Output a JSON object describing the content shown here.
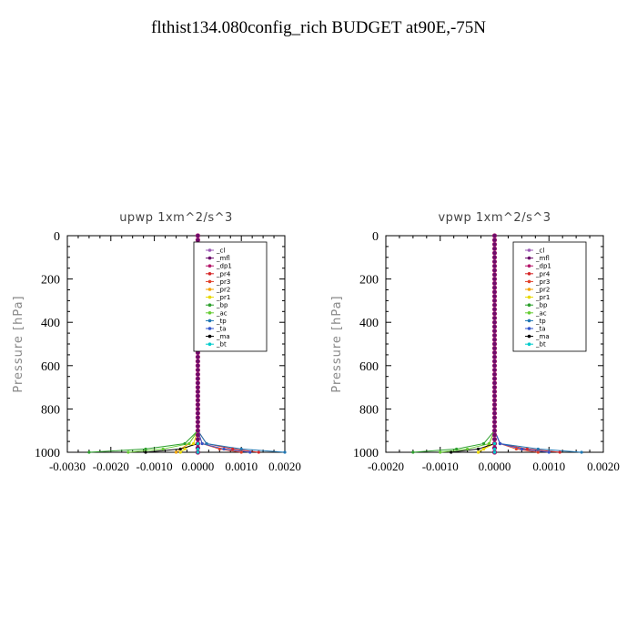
{
  "title": "flthist134.080config_rich  BUDGET at90E,-75N",
  "colors": {
    "_cl": "#9b59b6",
    "_mfl": "#6a0d6a",
    "_dp1": "#b5176a",
    "_pr4": "#d62728",
    "_pr3": "#e0402a",
    "_pr2": "#f4a300",
    "_pr1": "#e8d800",
    "_bp": "#2ca02c",
    "_ac": "#66cc33",
    "_tp": "#1f77b4",
    "_ta": "#3355cc",
    "_ma": "#000000",
    "_bt": "#00cccc"
  },
  "chart_data": [
    {
      "type": "line",
      "title": "upwp   1xm^2/s^3",
      "ylabel": "Pressure  [hPa]",
      "xlabel": "",
      "xlim": [
        -0.003,
        0.002
      ],
      "ylim": [
        1000,
        0
      ],
      "xticks": [
        "-0.0030",
        "-0.0020",
        "-0.0010",
        "0.0000",
        "0.0010",
        "0.0020"
      ],
      "yticks": [
        "0",
        "200",
        "400",
        "600",
        "800",
        "1000"
      ],
      "legend_position": "top-right",
      "grid": false,
      "series": [
        {
          "name": "_cl",
          "x": [
            0,
            0,
            0,
            0,
            0,
            0,
            0,
            0,
            0,
            0,
            0,
            0,
            0
          ],
          "y": [
            0,
            100,
            200,
            300,
            400,
            500,
            600,
            700,
            800,
            900,
            960,
            985,
            1000
          ]
        },
        {
          "name": "_mfl",
          "x": [
            0,
            0,
            0,
            0,
            0,
            0,
            0,
            0,
            0,
            0,
            0,
            0,
            0
          ],
          "y": [
            0,
            100,
            200,
            300,
            400,
            500,
            600,
            700,
            800,
            900,
            960,
            985,
            1000
          ]
        },
        {
          "name": "_dp1",
          "x": [
            0,
            0,
            0,
            0,
            0,
            0,
            0,
            0,
            0,
            0,
            0,
            0,
            0
          ],
          "y": [
            0,
            100,
            200,
            300,
            400,
            500,
            600,
            700,
            800,
            900,
            960,
            985,
            1000
          ]
        },
        {
          "name": "_pr4",
          "x": [
            0,
            0,
            0,
            0,
            0,
            0,
            0,
            0,
            0,
            0,
            0.0002,
            0.0008,
            0.0014
          ],
          "y": [
            0,
            100,
            200,
            300,
            400,
            500,
            600,
            700,
            800,
            900,
            960,
            985,
            1000
          ]
        },
        {
          "name": "_pr3",
          "x": [
            0,
            0,
            0,
            0,
            0,
            0,
            0,
            0,
            0,
            0,
            0.0001,
            0.0005,
            0.001
          ],
          "y": [
            0,
            100,
            200,
            300,
            400,
            500,
            600,
            700,
            800,
            900,
            960,
            985,
            1000
          ]
        },
        {
          "name": "_pr2",
          "x": [
            0,
            0,
            0,
            0,
            0,
            0,
            0,
            0,
            0,
            0,
            -0.0002,
            -0.0004,
            -0.0005
          ],
          "y": [
            0,
            100,
            200,
            300,
            400,
            500,
            600,
            700,
            800,
            900,
            960,
            985,
            1000
          ]
        },
        {
          "name": "_pr1",
          "x": [
            0,
            0,
            0,
            0,
            0,
            0,
            0,
            0,
            0,
            0,
            -0.0001,
            -0.0003,
            -0.0004
          ],
          "y": [
            0,
            100,
            200,
            300,
            400,
            500,
            600,
            700,
            800,
            900,
            960,
            985,
            1000
          ]
        },
        {
          "name": "_bp",
          "x": [
            0,
            0,
            0,
            0,
            0,
            0,
            0,
            0,
            0,
            0,
            -0.0003,
            -0.0012,
            -0.0025
          ],
          "y": [
            0,
            100,
            200,
            300,
            400,
            500,
            600,
            700,
            800,
            900,
            960,
            985,
            1000
          ]
        },
        {
          "name": "_ac",
          "x": [
            0,
            0,
            0,
            0,
            0,
            0,
            0,
            0,
            0,
            0,
            -0.0002,
            -0.0008,
            -0.0016
          ],
          "y": [
            0,
            100,
            200,
            300,
            400,
            500,
            600,
            700,
            800,
            900,
            960,
            985,
            1000
          ]
        },
        {
          "name": "_tp",
          "x": [
            0,
            0,
            0,
            0,
            0,
            0,
            0,
            0,
            0,
            0,
            0.0002,
            0.001,
            0.002
          ],
          "y": [
            0,
            100,
            200,
            300,
            400,
            500,
            600,
            700,
            800,
            900,
            960,
            985,
            1000
          ]
        },
        {
          "name": "_ta",
          "x": [
            0,
            0,
            0,
            0,
            0,
            0,
            0,
            0,
            0,
            0,
            0.0001,
            0.0006,
            0.0012
          ],
          "y": [
            0,
            100,
            200,
            300,
            400,
            500,
            600,
            700,
            800,
            900,
            960,
            985,
            1000
          ]
        },
        {
          "name": "_ma",
          "x": [
            0,
            0,
            0,
            0,
            0,
            0,
            0,
            0,
            0,
            0,
            0,
            -0.0004,
            -0.0012
          ],
          "y": [
            0,
            100,
            200,
            300,
            400,
            500,
            600,
            700,
            800,
            900,
            960,
            985,
            1000
          ]
        },
        {
          "name": "_bt",
          "x": [
            0,
            0,
            0,
            0,
            0,
            0,
            0,
            0,
            0,
            0,
            0,
            0,
            0
          ],
          "y": [
            0,
            100,
            200,
            300,
            400,
            500,
            600,
            700,
            800,
            900,
            960,
            985,
            1000
          ]
        }
      ]
    },
    {
      "type": "line",
      "title": "vpwp   1xm^2/s^3",
      "ylabel": "Pressure  [hPa]",
      "xlabel": "",
      "xlim": [
        -0.002,
        0.002
      ],
      "ylim": [
        1000,
        0
      ],
      "xticks": [
        "-0.0020",
        "-0.0010",
        "0.0000",
        "0.0010",
        "0.0020"
      ],
      "yticks": [
        "0",
        "200",
        "400",
        "600",
        "800",
        "1000"
      ],
      "legend_position": "top-right",
      "grid": false,
      "series": [
        {
          "name": "_cl",
          "x": [
            0,
            0,
            0,
            0,
            0,
            0,
            0,
            0,
            0,
            0,
            0,
            0,
            0
          ],
          "y": [
            0,
            100,
            200,
            300,
            400,
            500,
            600,
            700,
            800,
            900,
            960,
            985,
            1000
          ]
        },
        {
          "name": "_mfl",
          "x": [
            0,
            0,
            0,
            0,
            0,
            0,
            0,
            0,
            0,
            0,
            0,
            0,
            0
          ],
          "y": [
            0,
            100,
            200,
            300,
            400,
            500,
            600,
            700,
            800,
            900,
            960,
            985,
            1000
          ]
        },
        {
          "name": "_dp1",
          "x": [
            0,
            0,
            0,
            0,
            0,
            0,
            0,
            0,
            0,
            0,
            0,
            0,
            0
          ],
          "y": [
            0,
            100,
            200,
            300,
            400,
            500,
            600,
            700,
            800,
            900,
            960,
            985,
            1000
          ]
        },
        {
          "name": "_pr4",
          "x": [
            0,
            0,
            0,
            0,
            0,
            0,
            0,
            0,
            0,
            0,
            0.0001,
            0.0006,
            0.0012
          ],
          "y": [
            0,
            100,
            200,
            300,
            400,
            500,
            600,
            700,
            800,
            900,
            960,
            985,
            1000
          ]
        },
        {
          "name": "_pr3",
          "x": [
            0,
            0,
            0,
            0,
            0,
            0,
            0,
            0,
            0,
            0,
            0.0001,
            0.0004,
            0.0008
          ],
          "y": [
            0,
            100,
            200,
            300,
            400,
            500,
            600,
            700,
            800,
            900,
            960,
            985,
            1000
          ]
        },
        {
          "name": "_pr2",
          "x": [
            0,
            0,
            0,
            0,
            0,
            0,
            0,
            0,
            0,
            0,
            -0.0001,
            -0.0002,
            -0.0003
          ],
          "y": [
            0,
            100,
            200,
            300,
            400,
            500,
            600,
            700,
            800,
            900,
            960,
            985,
            1000
          ]
        },
        {
          "name": "_pr1",
          "x": [
            0,
            0,
            0,
            0,
            0,
            0,
            0,
            0,
            0,
            0,
            0,
            -0.0002,
            -0.0003
          ],
          "y": [
            0,
            100,
            200,
            300,
            400,
            500,
            600,
            700,
            800,
            900,
            960,
            985,
            1000
          ]
        },
        {
          "name": "_bp",
          "x": [
            0,
            0,
            0,
            0,
            0,
            0,
            0,
            0,
            0,
            0,
            -0.0002,
            -0.0007,
            -0.0015
          ],
          "y": [
            0,
            100,
            200,
            300,
            400,
            500,
            600,
            700,
            800,
            900,
            960,
            985,
            1000
          ]
        },
        {
          "name": "_ac",
          "x": [
            0,
            0,
            0,
            0,
            0,
            0,
            0,
            0,
            0,
            0,
            -0.0001,
            -0.0005,
            -0.001
          ],
          "y": [
            0,
            100,
            200,
            300,
            400,
            500,
            600,
            700,
            800,
            900,
            960,
            985,
            1000
          ]
        },
        {
          "name": "_tp",
          "x": [
            0,
            0,
            0,
            0,
            0,
            0,
            0,
            0,
            0,
            0,
            0.0001,
            0.0008,
            0.0016
          ],
          "y": [
            0,
            100,
            200,
            300,
            400,
            500,
            600,
            700,
            800,
            900,
            960,
            985,
            1000
          ]
        },
        {
          "name": "_ta",
          "x": [
            0,
            0,
            0,
            0,
            0,
            0,
            0,
            0,
            0,
            0,
            0.0001,
            0.0005,
            0.001
          ],
          "y": [
            0,
            100,
            200,
            300,
            400,
            500,
            600,
            700,
            800,
            900,
            960,
            985,
            1000
          ]
        },
        {
          "name": "_ma",
          "x": [
            0,
            0,
            0,
            0,
            0,
            0,
            0,
            0,
            0,
            0,
            0,
            -0.0003,
            -0.0008
          ],
          "y": [
            0,
            100,
            200,
            300,
            400,
            500,
            600,
            700,
            800,
            900,
            960,
            985,
            1000
          ]
        },
        {
          "name": "_bt",
          "x": [
            0,
            0,
            0,
            0,
            0,
            0,
            0,
            0,
            0,
            0,
            0,
            0,
            0
          ],
          "y": [
            0,
            100,
            200,
            300,
            400,
            500,
            600,
            700,
            800,
            900,
            960,
            985,
            1000
          ]
        }
      ]
    }
  ]
}
